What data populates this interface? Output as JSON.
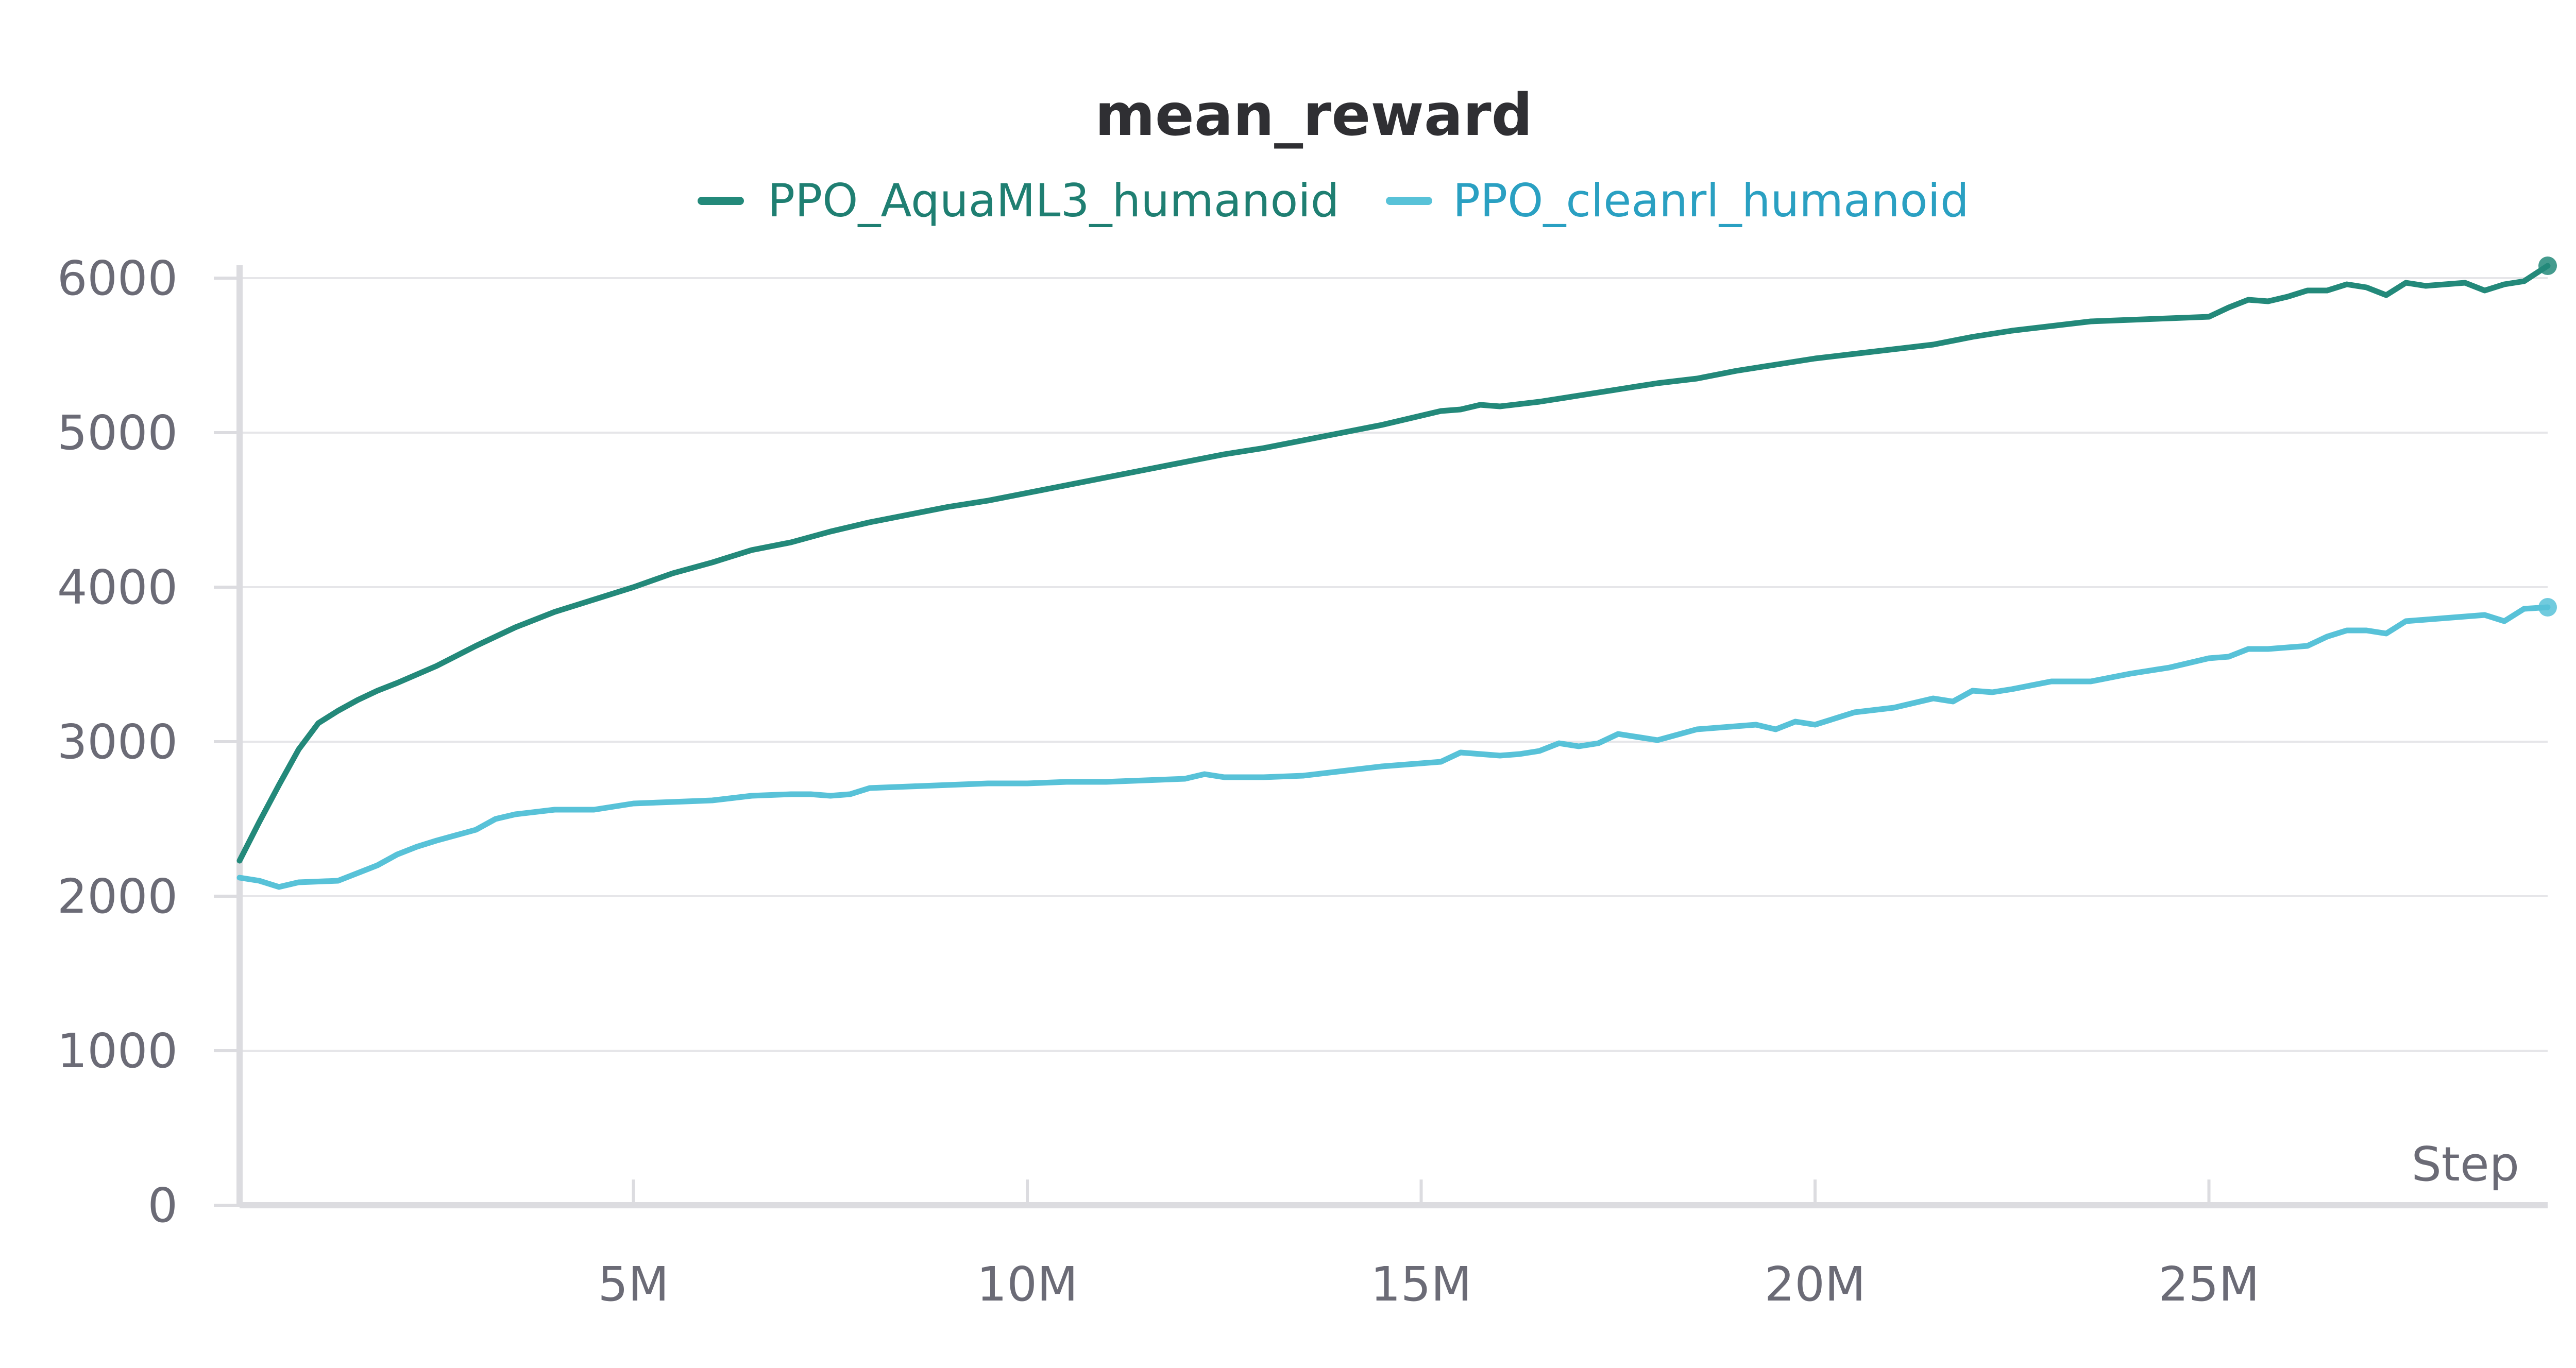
{
  "colors": {
    "series_1": "#23897a",
    "series_2": "#58c2d8",
    "legend_text_1": "#1f7f72",
    "legend_text_2": "#2aa0c2",
    "title": "#2f2f33",
    "ticks": "#6b6b76"
  },
  "chart_data": {
    "type": "line",
    "title": "mean_reward",
    "xlabel": "Step",
    "ylabel": "",
    "xlim": [
      0,
      29300000
    ],
    "ylim": [
      0,
      6000
    ],
    "grid": true,
    "legend_position": "top-center",
    "x_ticks": [
      {
        "value": 5000000,
        "label": "5M"
      },
      {
        "value": 10000000,
        "label": "10M"
      },
      {
        "value": 15000000,
        "label": "15M"
      },
      {
        "value": 20000000,
        "label": "20M"
      },
      {
        "value": 25000000,
        "label": "25M"
      }
    ],
    "y_ticks": [
      {
        "value": 0,
        "label": "0"
      },
      {
        "value": 1000,
        "label": "1000"
      },
      {
        "value": 2000,
        "label": "2000"
      },
      {
        "value": 3000,
        "label": "3000"
      },
      {
        "value": 4000,
        "label": "4000"
      },
      {
        "value": 5000,
        "label": "5000"
      },
      {
        "value": 6000,
        "label": "6000"
      }
    ],
    "series": [
      {
        "name": "PPO_AquaML3_humanoid",
        "x": [
          0,
          250000,
          500000,
          750000,
          1000000,
          1250000,
          1500000,
          1750000,
          2000000,
          2500000,
          3000000,
          3500000,
          4000000,
          4500000,
          5000000,
          5500000,
          6000000,
          6500000,
          7000000,
          7500000,
          8000000,
          8500000,
          9000000,
          9500000,
          10000000,
          10500000,
          11000000,
          11500000,
          12000000,
          12500000,
          13000000,
          13500000,
          14000000,
          14500000,
          15000000,
          15250000,
          15500000,
          15750000,
          16000000,
          16500000,
          17000000,
          17500000,
          18000000,
          18500000,
          19000000,
          19250000,
          19500000,
          19750000,
          20000000,
          20500000,
          21000000,
          21500000,
          22000000,
          22500000,
          23000000,
          23500000,
          24000000,
          24500000,
          25000000,
          25250000,
          25500000,
          25750000,
          26000000,
          26250000,
          26500000,
          26750000,
          27000000,
          27250000,
          27500000,
          27750000,
          28000000,
          28250000,
          28500000,
          28750000,
          29000000,
          29300000
        ],
        "y": [
          2230,
          2480,
          2720,
          2950,
          3120,
          3200,
          3270,
          3330,
          3380,
          3490,
          3620,
          3740,
          3840,
          3920,
          4000,
          4090,
          4160,
          4240,
          4290,
          4360,
          4420,
          4470,
          4520,
          4560,
          4610,
          4660,
          4710,
          4760,
          4810,
          4860,
          4900,
          4950,
          5000,
          5050,
          5110,
          5140,
          5150,
          5180,
          5170,
          5200,
          5240,
          5280,
          5320,
          5350,
          5400,
          5420,
          5440,
          5460,
          5480,
          5510,
          5540,
          5570,
          5620,
          5660,
          5690,
          5720,
          5730,
          5740,
          5750,
          5810,
          5860,
          5850,
          5880,
          5920,
          5920,
          5960,
          5940,
          5890,
          5970,
          5950,
          5960,
          5970,
          5920,
          5960,
          5980,
          6080
        ]
      },
      {
        "name": "PPO_cleanrl_humanoid",
        "x": [
          0,
          250000,
          500000,
          750000,
          1000000,
          1250000,
          1500000,
          1750000,
          2000000,
          2250000,
          2500000,
          3000000,
          3250000,
          3500000,
          4000000,
          4500000,
          5000000,
          5500000,
          6000000,
          6500000,
          7000000,
          7250000,
          7500000,
          7750000,
          8000000,
          8500000,
          9000000,
          9500000,
          10000000,
          10500000,
          11000000,
          11500000,
          12000000,
          12250000,
          12500000,
          13000000,
          13500000,
          14000000,
          14500000,
          15000000,
          15250000,
          15500000,
          16000000,
          16250000,
          16500000,
          16750000,
          17000000,
          17250000,
          17500000,
          18000000,
          18500000,
          19000000,
          19250000,
          19500000,
          19750000,
          20000000,
          20500000,
          21000000,
          21250000,
          21500000,
          21750000,
          22000000,
          22250000,
          22500000,
          23000000,
          23500000,
          24000000,
          24250000,
          24500000,
          25000000,
          25250000,
          25500000,
          25750000,
          26000000,
          26250000,
          26500000,
          26750000,
          27000000,
          27250000,
          27500000,
          28000000,
          28500000,
          28750000,
          29000000,
          29300000
        ],
        "y": [
          2120,
          2100,
          2060,
          2090,
          2095,
          2100,
          2150,
          2200,
          2270,
          2320,
          2360,
          2430,
          2500,
          2530,
          2560,
          2560,
          2600,
          2610,
          2620,
          2650,
          2660,
          2660,
          2650,
          2660,
          2700,
          2710,
          2720,
          2730,
          2730,
          2740,
          2740,
          2750,
          2760,
          2790,
          2770,
          2770,
          2780,
          2810,
          2840,
          2860,
          2870,
          2930,
          2910,
          2920,
          2940,
          2990,
          2970,
          2990,
          3050,
          3010,
          3080,
          3100,
          3110,
          3080,
          3130,
          3110,
          3190,
          3220,
          3250,
          3280,
          3260,
          3330,
          3320,
          3340,
          3390,
          3390,
          3440,
          3460,
          3480,
          3540,
          3550,
          3600,
          3600,
          3610,
          3620,
          3680,
          3720,
          3720,
          3700,
          3780,
          3800,
          3820,
          3780,
          3860,
          3870
        ]
      }
    ]
  }
}
